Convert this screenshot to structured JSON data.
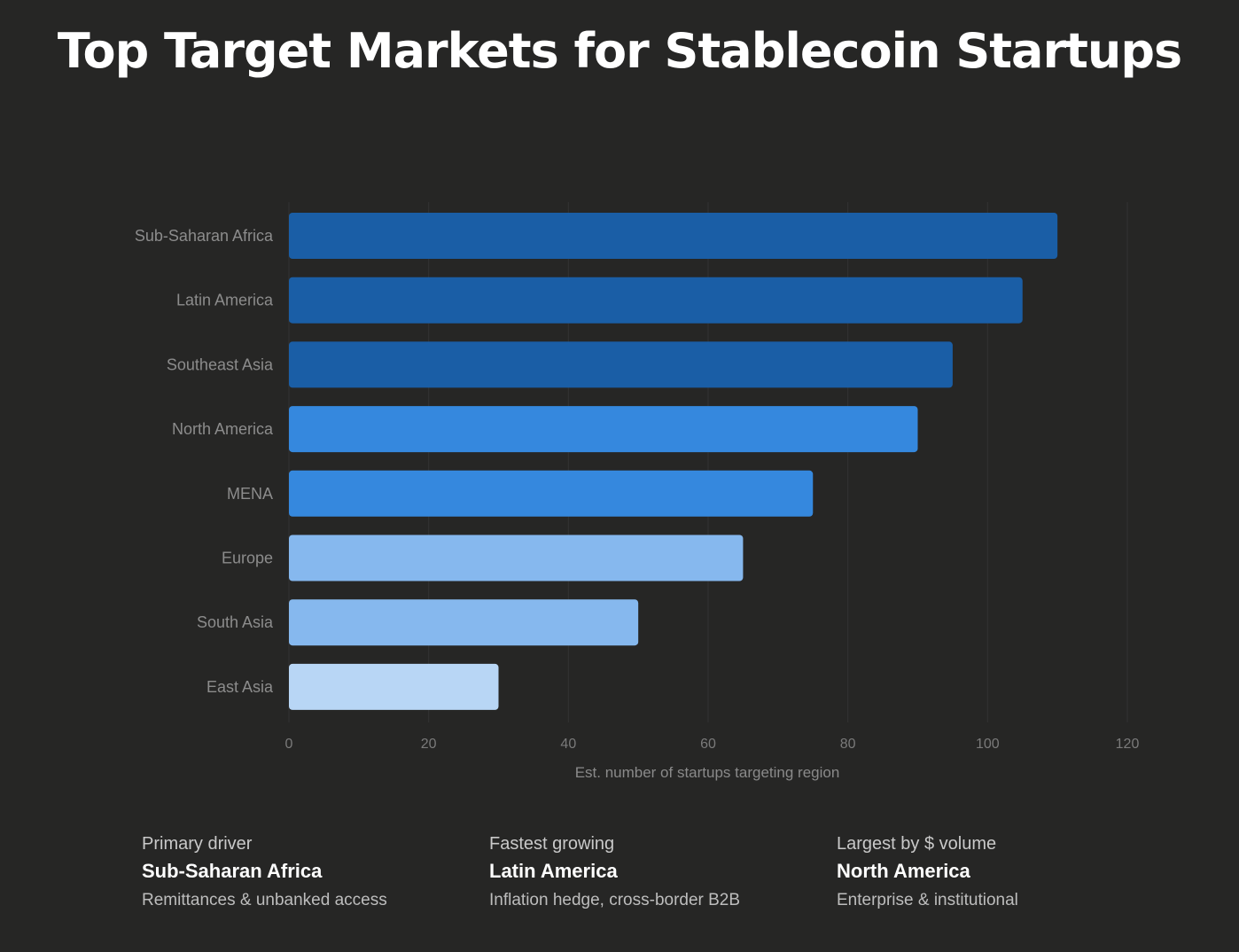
{
  "title": "Top Target Markets for Stablecoin Startups",
  "chart_data": {
    "type": "bar",
    "orientation": "horizontal",
    "categories": [
      "Sub-Saharan Africa",
      "Latin America",
      "Southeast Asia",
      "North America",
      "MENA",
      "Europe",
      "South Asia",
      "East Asia"
    ],
    "values": [
      110,
      105,
      95,
      90,
      75,
      65,
      50,
      30
    ],
    "bar_colors": [
      "#1a5ea6",
      "#1a5ea6",
      "#1a5ea6",
      "#3588de",
      "#3588de",
      "#86b8ee",
      "#86b8ee",
      "#b8d6f5"
    ],
    "xlabel": "Est. number of startups targeting region",
    "ylabel": "",
    "xlim": [
      0,
      120
    ],
    "xticks": [
      0,
      20,
      40,
      60,
      80,
      100,
      120
    ],
    "grid": "vertical"
  },
  "highlights": [
    {
      "label": "Primary driver",
      "value": "Sub-Saharan Africa",
      "description": "Remittances & unbanked access"
    },
    {
      "label": "Fastest growing",
      "value": "Latin America",
      "description": "Inflation hedge, cross-border B2B"
    },
    {
      "label": "Largest by $ volume",
      "value": "North America",
      "description": "Enterprise & institutional"
    }
  ]
}
